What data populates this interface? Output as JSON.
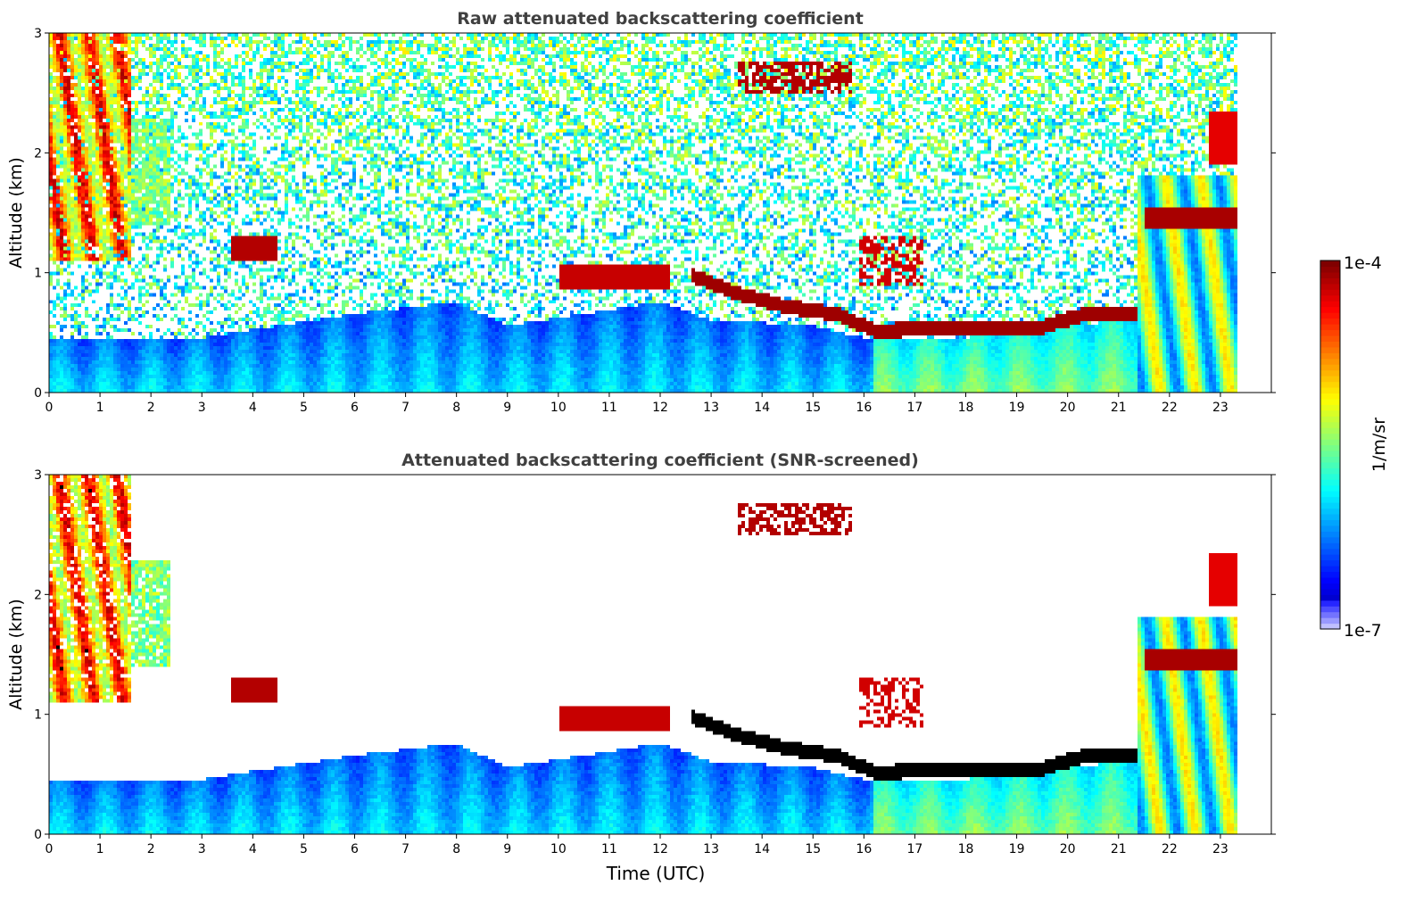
{
  "chart_data": [
    {
      "type": "heatmap",
      "title": "Raw attenuated backscattering coefficient",
      "xlabel": "",
      "ylabel": "Altitude (km)",
      "xlim": [
        0,
        24
      ],
      "ylim": [
        0,
        3
      ],
      "xticks": [
        0,
        1,
        2,
        3,
        4,
        5,
        6,
        7,
        8,
        9,
        10,
        11,
        12,
        13,
        14,
        15,
        16,
        17,
        18,
        19,
        20,
        21,
        22,
        23
      ],
      "yticks": [
        0,
        1,
        2,
        3
      ],
      "screened": false,
      "data_end_hour": 23.3
    },
    {
      "type": "heatmap",
      "title": "Attenuated backscattering coefficient (SNR-screened)",
      "xlabel": "Time (UTC)",
      "ylabel": "Altitude (km)",
      "xlim": [
        0,
        24
      ],
      "ylim": [
        0,
        3
      ],
      "xticks": [
        0,
        1,
        2,
        3,
        4,
        5,
        6,
        7,
        8,
        9,
        10,
        11,
        12,
        13,
        14,
        15,
        16,
        17,
        18,
        19,
        20,
        21,
        22,
        23
      ],
      "yticks": [
        0,
        1,
        2,
        3
      ],
      "screened": true,
      "data_end_hour": 23.3
    }
  ],
  "colorbar": {
    "label": "1/m/sr",
    "max_label": "1e-4",
    "min_label": "1e-7",
    "scale": "log",
    "colormap": "jet"
  },
  "features": {
    "boundary_layer_top_km": [
      [
        0,
        0.45
      ],
      [
        3,
        0.45
      ],
      [
        6,
        0.65
      ],
      [
        8,
        0.75
      ],
      [
        9,
        0.55
      ],
      [
        12,
        0.75
      ],
      [
        13,
        0.6
      ],
      [
        15,
        0.55
      ],
      [
        16,
        0.45
      ],
      [
        18,
        0.45
      ],
      [
        20,
        0.55
      ],
      [
        21.3,
        0.6
      ]
    ],
    "cloud_base_km": [
      [
        12.6,
        0.92
      ],
      [
        13.5,
        0.76
      ],
      [
        14.5,
        0.65
      ],
      [
        15.5,
        0.58
      ],
      [
        16.2,
        0.45
      ],
      [
        17.5,
        0.46
      ],
      [
        18.5,
        0.46
      ],
      [
        19.5,
        0.48
      ],
      [
        20.3,
        0.58
      ],
      [
        21.3,
        0.58
      ]
    ],
    "upper_cloud_km": [
      [
        21.6,
        1.4
      ],
      [
        22.6,
        1.4
      ],
      [
        22.8,
        2.2
      ],
      [
        23.1,
        2.2
      ]
    ]
  }
}
